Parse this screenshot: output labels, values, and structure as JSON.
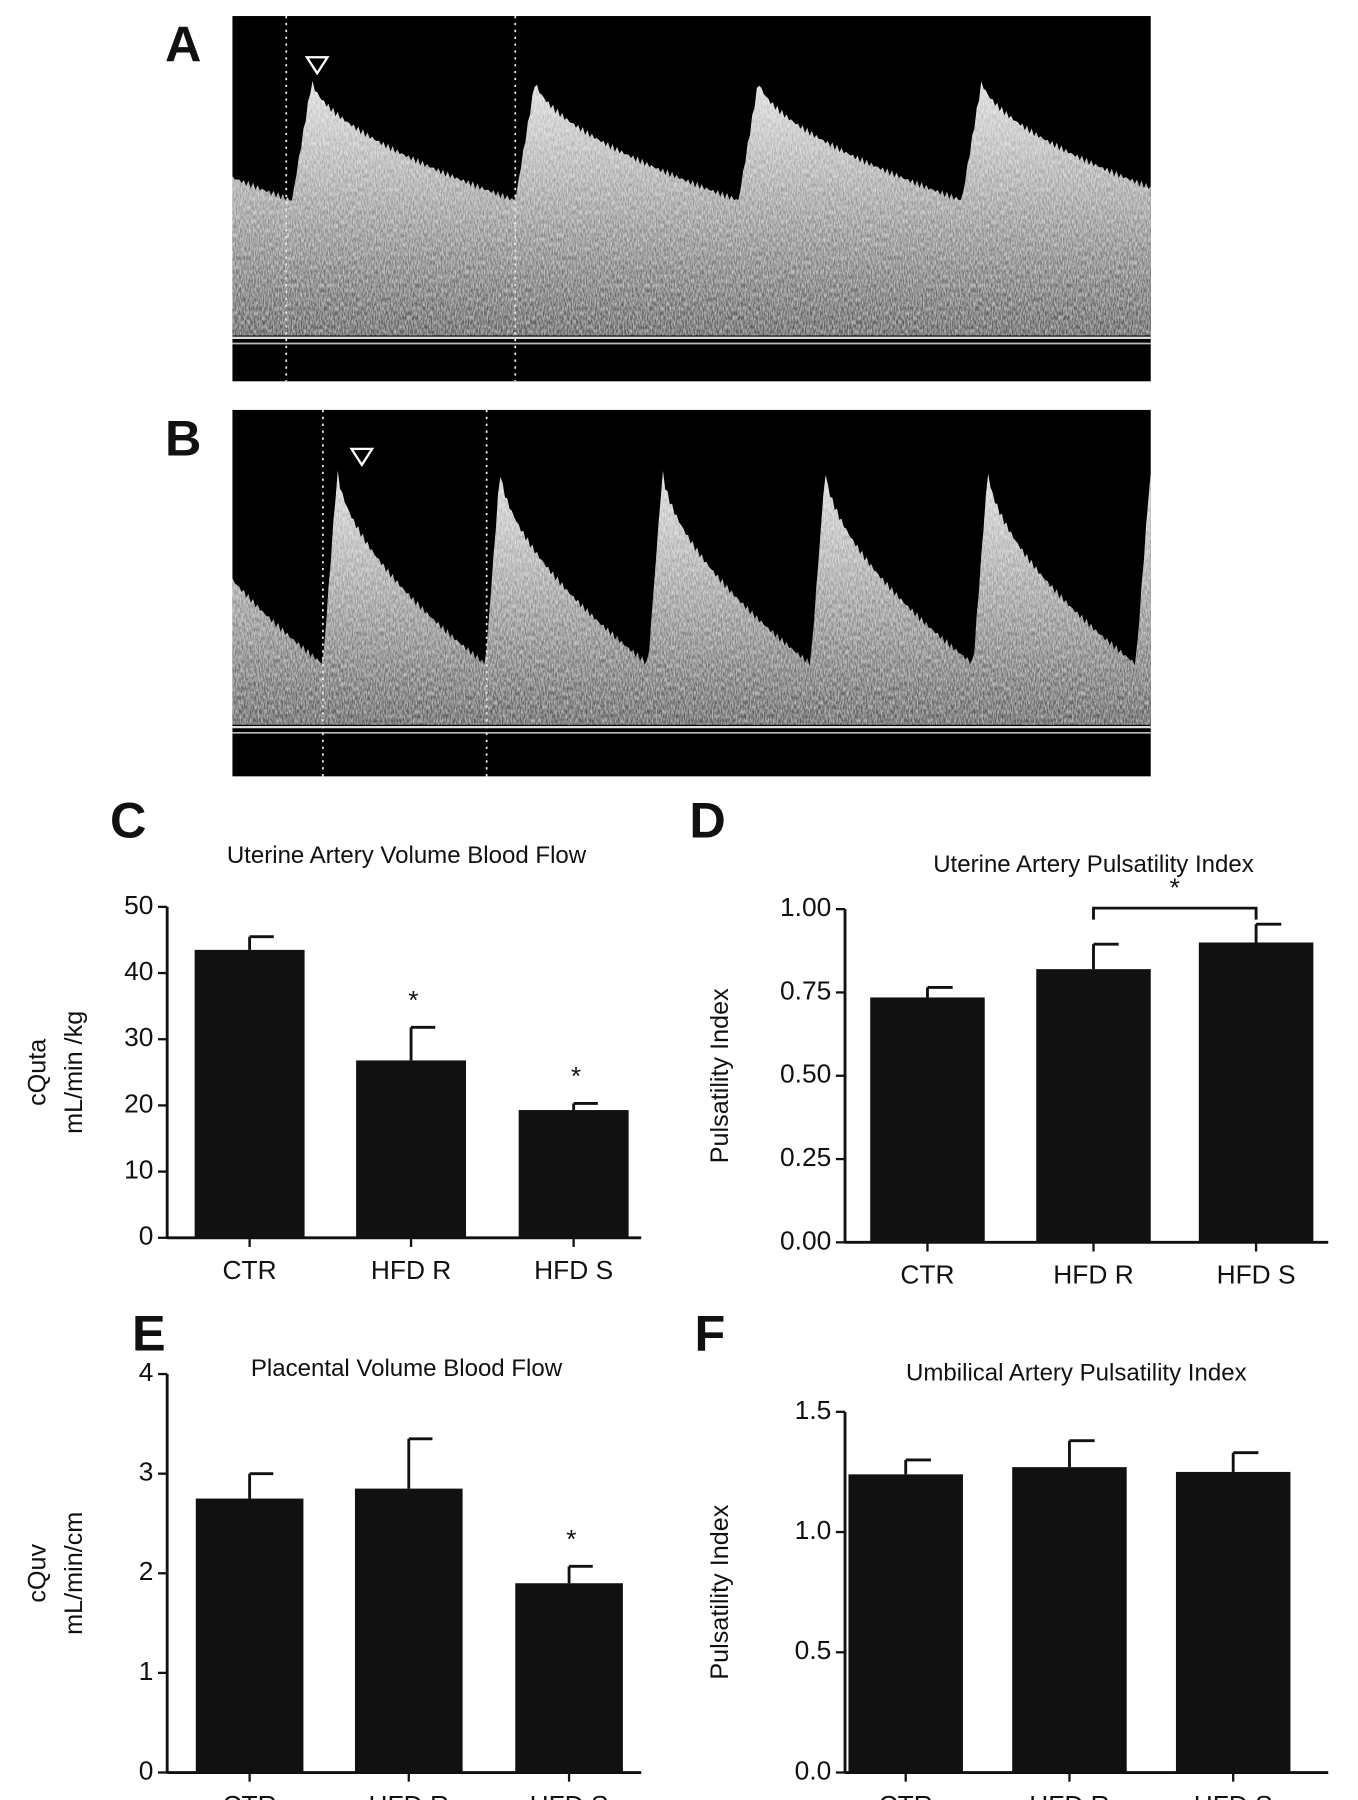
{
  "images": [
    {
      "label": "A"
    },
    {
      "label": "B"
    }
  ],
  "chart_data": [
    {
      "type": "bar",
      "panel": "C",
      "title": "Uterine Artery Volume Blood Flow",
      "y_label": [
        "cQuta",
        "mL/min /kg"
      ],
      "categories": [
        "CTR",
        "HFD R",
        "HFD S"
      ],
      "values": [
        43.5,
        26.8,
        19.3
      ],
      "errors": [
        2.0,
        5.0,
        1.0
      ],
      "markers": [
        null,
        "*",
        "*"
      ],
      "color": "#111111",
      "ylim": [
        0,
        50
      ],
      "yticks": [
        0,
        10,
        20,
        30,
        40,
        50
      ]
    },
    {
      "type": "bar",
      "panel": "D",
      "title": "Uterine Artery Pulsatility Index",
      "y_label": "Pulsatility Index",
      "categories": [
        "CTR",
        "HFD R",
        "HFD S"
      ],
      "values": [
        0.735,
        0.82,
        0.9
      ],
      "errors": [
        0.03,
        0.075,
        0.055
      ],
      "bracket": {
        "from": 1,
        "to": 2,
        "text": "*"
      },
      "color": "#111111",
      "ylim": [
        0,
        1
      ],
      "yticks": [
        {
          "value": 0,
          "label": "0.00"
        },
        {
          "value": 0.25,
          "label": "0.25"
        },
        {
          "value": 0.5,
          "label": "0.50"
        },
        {
          "value": 0.75,
          "label": "0.75"
        },
        {
          "value": 1,
          "label": "1.00"
        }
      ]
    },
    {
      "type": "bar",
      "panel": "E",
      "title": "Placental Volume Blood Flow",
      "y_label": [
        "cQuv",
        "mL/min/cm"
      ],
      "categories": [
        "CTR",
        "HFD R",
        "HFD S"
      ],
      "values": [
        2.75,
        2.85,
        1.9
      ],
      "errors": [
        0.25,
        0.5,
        0.17
      ],
      "markers": [
        null,
        null,
        "*"
      ],
      "color": "#111111",
      "ylim": [
        0,
        4
      ],
      "yticks": [
        0,
        1,
        2,
        3,
        4
      ]
    },
    {
      "type": "bar",
      "panel": "F",
      "title": "Umbilical Artery Pulsatility Index",
      "y_label": "Pulsatility Index",
      "categories": [
        "CTR",
        "HFD R",
        "HFD S"
      ],
      "values": [
        1.24,
        1.27,
        1.25
      ],
      "errors": [
        0.06,
        0.11,
        0.08
      ],
      "color": "#111111",
      "ylim": [
        0,
        1.5
      ],
      "yticks": [
        {
          "value": 0,
          "label": "0.0"
        },
        {
          "value": 0.5,
          "label": "0.5"
        },
        {
          "value": 1,
          "label": "1.0"
        },
        {
          "value": 1.5,
          "label": "1.5"
        }
      ]
    }
  ]
}
